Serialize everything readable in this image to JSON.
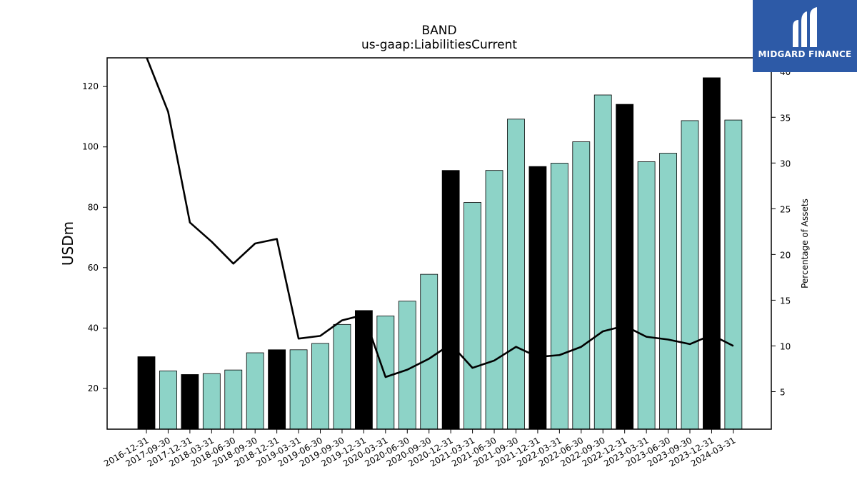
{
  "chart_data": {
    "type": "bar",
    "title": "BAND",
    "subtitle": "us-gaap:LiabilitiesCurrent",
    "ylabel": "USDm",
    "y2label": "Percentage of Assets",
    "categories": [
      "2016-12-31",
      "2017-09-30",
      "2017-12-31",
      "2018-03-31",
      "2018-06-30",
      "2018-09-30",
      "2018-12-31",
      "2019-03-31",
      "2019-06-30",
      "2019-09-30",
      "2019-12-31",
      "2020-03-31",
      "2020-06-30",
      "2020-09-30",
      "2020-12-31",
      "2021-03-31",
      "2021-06-30",
      "2021-09-30",
      "2021-12-31",
      "2022-03-31",
      "2022-06-30",
      "2022-09-30",
      "2022-12-31",
      "2023-03-31",
      "2023-06-30",
      "2023-09-30",
      "2023-12-31",
      "2024-03-31"
    ],
    "series": [
      {
        "type": "bar",
        "values": [
          30.5,
          25.8,
          24.6,
          24.9,
          26.1,
          31.8,
          32.8,
          32.8,
          34.9,
          41.2,
          45.8,
          44.0,
          48.9,
          57.8,
          92.2,
          81.6,
          92.2,
          109.2,
          93.5,
          94.6,
          101.7,
          117.2,
          114.1,
          95.1,
          97.9,
          108.7,
          122.9,
          108.9
        ],
        "highlight": [
          true,
          false,
          true,
          false,
          false,
          false,
          true,
          false,
          false,
          false,
          true,
          false,
          false,
          false,
          true,
          false,
          false,
          false,
          true,
          false,
          false,
          false,
          true,
          false,
          false,
          false,
          true,
          false
        ],
        "color": "#8dd3c7",
        "highlight_color": "#000000"
      },
      {
        "type": "line",
        "axis": "right",
        "values": [
          41.6,
          35.6,
          23.5,
          21.4,
          19.0,
          21.2,
          21.7,
          10.8,
          11.1,
          12.8,
          13.4,
          6.6,
          7.4,
          8.6,
          10.2,
          7.6,
          8.4,
          9.9,
          8.8,
          9.0,
          9.9,
          11.6,
          12.2,
          11.0,
          10.7,
          10.2,
          11.2,
          10.0
        ],
        "color": "#000000"
      }
    ],
    "ylim": [
      6.5,
      129.5
    ],
    "yticks": [
      20,
      40,
      60,
      80,
      100,
      120
    ],
    "y2lim": [
      0.9,
      41.5
    ],
    "y2ticks": [
      5,
      10,
      15,
      20,
      25,
      30,
      35,
      40
    ],
    "grid": false,
    "legend": "none"
  },
  "logo": {
    "text": "MIDGARD FINANCE"
  },
  "colors": {
    "bar": "#8dd3c7",
    "bar_highlight": "#000000",
    "line": "#000000",
    "logo_bg": "#2d5aa7"
  }
}
